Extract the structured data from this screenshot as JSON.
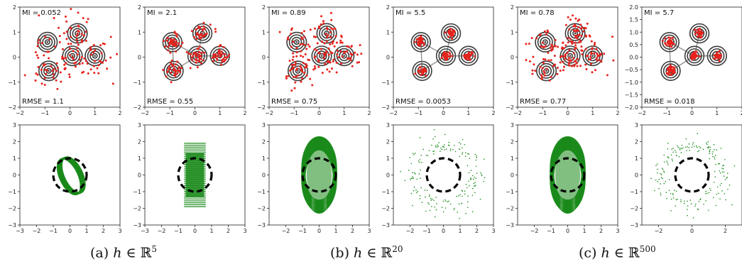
{
  "chart_data": [
    {
      "type": "scatter",
      "panel": "top-1",
      "x_ticks": [
        "−2",
        "−1",
        "0",
        "1",
        "2"
      ],
      "y_ticks": [
        "−2",
        "−1",
        "0",
        "1",
        "2"
      ],
      "xlim": [
        -2,
        2
      ],
      "ylim": [
        -2,
        2
      ],
      "mi_label": "MI = 0.052",
      "rmse_label": "RMSE = 1.1",
      "contour": "separated",
      "spread": 0.75,
      "n_points": 140,
      "seed": 11
    },
    {
      "type": "scatter",
      "panel": "top-2",
      "x_ticks": [
        "−2",
        "−1",
        "0",
        "1",
        "2"
      ],
      "y_ticks": [
        "−2",
        "−1",
        "0",
        "1",
        "2"
      ],
      "xlim": [
        -2,
        2
      ],
      "ylim": [
        -2,
        2
      ],
      "mi_label": "MI = 2.1",
      "rmse_label": "RMSE = 0.55",
      "contour": "merged",
      "spread": 0.28,
      "n_points": 170,
      "seed": 23
    },
    {
      "type": "scatter",
      "panel": "top-3",
      "x_ticks": [
        "−2",
        "−1",
        "0",
        "1",
        "2"
      ],
      "y_ticks": [
        "−2",
        "−1",
        "0",
        "1",
        "2"
      ],
      "xlim": [
        -2,
        2
      ],
      "ylim": [
        -2,
        2
      ],
      "mi_label": "MI = 0.89",
      "rmse_label": "RMSE = 0.75",
      "contour": "separated",
      "spread": 0.55,
      "n_points": 170,
      "seed": 37
    },
    {
      "type": "scatter",
      "panel": "top-4",
      "x_ticks": [
        "−2",
        "−1",
        "0",
        "1",
        "2"
      ],
      "y_ticks": [
        "−2",
        "−1",
        "0",
        "1",
        "2"
      ],
      "xlim": [
        -2,
        2
      ],
      "ylim": [
        -2,
        2
      ],
      "mi_label": "MI = 5.5",
      "rmse_label": "RMSE = 0.0053",
      "contour": "merged",
      "spread": 0.16,
      "n_points": 150,
      "seed": 41
    },
    {
      "type": "scatter",
      "panel": "top-5",
      "x_ticks": [
        "−2",
        "−1",
        "0",
        "1",
        "2"
      ],
      "y_ticks": [
        "−2",
        "−1",
        "0",
        "1",
        "2"
      ],
      "xlim": [
        -2,
        2
      ],
      "ylim": [
        -2,
        2
      ],
      "mi_label": "MI = 0.78",
      "rmse_label": "RMSE = 0.77",
      "contour": "separated",
      "spread": 0.55,
      "n_points": 180,
      "seed": 53
    },
    {
      "type": "scatter",
      "panel": "top-6",
      "x_ticks": [
        "−2",
        "−1",
        "0",
        "1",
        "2"
      ],
      "y_ticks": [
        "−1.5",
        "−1.0",
        "−0.5",
        "0.0",
        "0.5",
        "1.0",
        "1.5",
        "2.0",
        "−2.0"
      ],
      "y_tick_values": [
        -1.5,
        -1.0,
        -0.5,
        0.0,
        0.5,
        1.0,
        1.5,
        2.0,
        -2.0
      ],
      "xlim": [
        -2,
        2
      ],
      "ylim": [
        -2,
        2
      ],
      "mi_label": "MI = 5.7",
      "rmse_label": "RMSE = 0.018",
      "contour": "merged",
      "spread": 0.14,
      "n_points": 160,
      "seed": 67
    },
    {
      "type": "scatter",
      "panel": "bottom-1",
      "x_ticks": [
        "−3",
        "−2",
        "−1",
        "0",
        "1",
        "2",
        "3"
      ],
      "y_ticks": [
        "−3",
        "−2",
        "−1",
        "0",
        "1",
        "2",
        "3"
      ],
      "xlim": [
        -3,
        3
      ],
      "ylim": [
        -3,
        3
      ],
      "style": "tilted-ring",
      "circle_radius": 1.0
    },
    {
      "type": "scatter",
      "panel": "bottom-2",
      "x_ticks": [
        "−3",
        "−2",
        "−1",
        "0",
        "1",
        "2",
        "3"
      ],
      "y_ticks": [
        "−3",
        "−2",
        "−1",
        "0",
        "1",
        "2",
        "3"
      ],
      "xlim": [
        -3,
        3
      ],
      "ylim": [
        -3,
        3
      ],
      "style": "flat-ellipses",
      "circle_radius": 1.0
    },
    {
      "type": "scatter",
      "panel": "bottom-3",
      "x_ticks": [
        "−2",
        "−1",
        "0",
        "1",
        "2",
        "3"
      ],
      "y_ticks": [
        "−3",
        "−2",
        "−1",
        "0",
        "1",
        "2",
        "3"
      ],
      "xlim": [
        -3,
        3
      ],
      "ylim": [
        -3,
        3
      ],
      "style": "tall-ellipses",
      "circle_radius": 1.0
    },
    {
      "type": "scatter",
      "panel": "bottom-4",
      "x_ticks": [
        "−2",
        "−1",
        "0",
        "1",
        "2",
        "3"
      ],
      "y_ticks": [
        "−3",
        "−2",
        "−1",
        "0",
        "1",
        "2",
        "3"
      ],
      "xlim": [
        -3,
        3
      ],
      "ylim": [
        -3,
        3
      ],
      "style": "dots",
      "circle_radius": 1.0,
      "seed": 77
    },
    {
      "type": "scatter",
      "panel": "bottom-5",
      "x_ticks": [
        "−2",
        "−1",
        "0",
        "1",
        "2",
        "3"
      ],
      "y_ticks": [
        "−3",
        "−2",
        "−1",
        "0",
        "1",
        "2",
        "3"
      ],
      "xlim": [
        -3,
        3
      ],
      "ylim": [
        -3,
        3
      ],
      "style": "tall-ellipses",
      "circle_radius": 1.0
    },
    {
      "type": "scatter",
      "panel": "bottom-6",
      "x_ticks": [
        "−2",
        "0",
        "2"
      ],
      "x_tick_values": [
        -2,
        0,
        2
      ],
      "y_ticks": [
        "−3",
        "−2",
        "−1",
        "0",
        "1",
        "2",
        "3"
      ],
      "xlim": [
        -3,
        3
      ],
      "ylim": [
        -3,
        3
      ],
      "style": "dots",
      "circle_radius": 1.0,
      "seed": 91
    }
  ],
  "captions": [
    {
      "prefix": "(a) ",
      "var": "h",
      "rel": " ∈ ℝ",
      "exp": "5"
    },
    {
      "prefix": "(b) ",
      "var": "h",
      "rel": " ∈ ℝ",
      "exp": "20"
    },
    {
      "prefix": "(c) ",
      "var": "h",
      "rel": " ∈ ℝ",
      "exp": "500"
    }
  ],
  "colors": {
    "points": "#e8221c",
    "contours": "#3c3c3c",
    "ellipses": "#1a8a1a",
    "circle": "#000000",
    "axes": "#222222"
  }
}
